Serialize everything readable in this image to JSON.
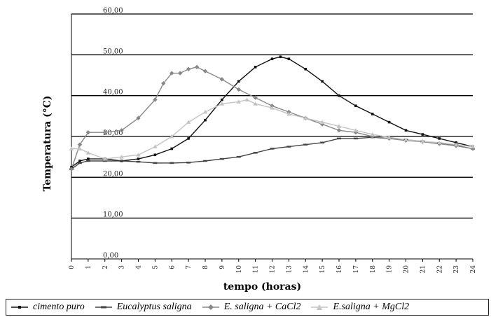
{
  "chart_data": {
    "type": "line",
    "xlabel": "tempo (horas)",
    "ylabel": "Temperatura (°C)",
    "xlim": [
      0,
      24
    ],
    "ylim": [
      0,
      60
    ],
    "yticks": [
      "0,00",
      "10,00",
      "20,00",
      "30,00",
      "40,00",
      "50,00",
      "60,00"
    ],
    "xticks": [
      "0",
      "1",
      "2",
      "3",
      "4",
      "5",
      "6",
      "7",
      "8",
      "9",
      "10",
      "11",
      "12",
      "13",
      "14",
      "15",
      "16",
      "17",
      "18",
      "19",
      "20",
      "21",
      "22",
      "23",
      "24"
    ],
    "grid": "horizontal",
    "legend_position": "bottom",
    "series": [
      {
        "name": "cimento puro",
        "color": "#111111",
        "marker": "square",
        "points": [
          [
            0,
            22.5
          ],
          [
            0.5,
            24
          ],
          [
            1,
            24.5
          ],
          [
            2,
            24.5
          ],
          [
            3,
            24
          ],
          [
            4,
            24.5
          ],
          [
            5,
            25.5
          ],
          [
            6,
            27
          ],
          [
            7,
            29.5
          ],
          [
            8,
            34
          ],
          [
            9,
            39
          ],
          [
            10,
            43.5
          ],
          [
            11,
            47
          ],
          [
            12,
            49
          ],
          [
            12.5,
            49.5
          ],
          [
            13,
            49
          ],
          [
            14,
            46.5
          ],
          [
            15,
            43.5
          ],
          [
            16,
            40
          ],
          [
            17,
            37.5
          ],
          [
            18,
            35.5
          ],
          [
            19,
            33.5
          ],
          [
            20,
            31.5
          ],
          [
            21,
            30.5
          ],
          [
            22,
            29.5
          ],
          [
            23,
            28.5
          ],
          [
            24,
            27.5
          ]
        ]
      },
      {
        "name": "Eucalyptus saligna",
        "color": "#444444",
        "marker": "dash",
        "points": [
          [
            0,
            22
          ],
          [
            0.5,
            23.5
          ],
          [
            1,
            24
          ],
          [
            2,
            24
          ],
          [
            3,
            24
          ],
          [
            4,
            23.8
          ],
          [
            5,
            23.5
          ],
          [
            6,
            23.5
          ],
          [
            7,
            23.6
          ],
          [
            8,
            24
          ],
          [
            9,
            24.5
          ],
          [
            10,
            25
          ],
          [
            11,
            26
          ],
          [
            12,
            27
          ],
          [
            13,
            27.5
          ],
          [
            14,
            28
          ],
          [
            15,
            28.5
          ],
          [
            16,
            29.5
          ],
          [
            17,
            29.5
          ],
          [
            18,
            29.8
          ],
          [
            19,
            29.5
          ],
          [
            20,
            29.2
          ],
          [
            21,
            28.8
          ],
          [
            22,
            28.3
          ],
          [
            23,
            27.8
          ],
          [
            24,
            27
          ]
        ]
      },
      {
        "name": "E. saligna + CaCl2",
        "color": "#888888",
        "marker": "diamond",
        "points": [
          [
            0,
            22
          ],
          [
            0.5,
            28
          ],
          [
            1,
            31
          ],
          [
            2,
            31
          ],
          [
            3,
            31.5
          ],
          [
            4,
            34.5
          ],
          [
            5,
            39
          ],
          [
            5.5,
            43
          ],
          [
            6,
            45.5
          ],
          [
            6.5,
            45.5
          ],
          [
            7,
            46.5
          ],
          [
            7.5,
            47
          ],
          [
            8,
            46
          ],
          [
            9,
            44
          ],
          [
            10,
            41.5
          ],
          [
            11,
            39.5
          ],
          [
            12,
            37.5
          ],
          [
            13,
            36
          ],
          [
            14,
            34.5
          ],
          [
            15,
            33
          ],
          [
            16,
            31.5
          ],
          [
            17,
            31
          ],
          [
            18,
            30
          ],
          [
            19,
            29.5
          ],
          [
            20,
            29
          ],
          [
            21,
            28.7
          ],
          [
            22,
            28.2
          ],
          [
            23,
            27.7
          ],
          [
            24,
            27
          ]
        ]
      },
      {
        "name": "E.saligna + MgCl2",
        "color": "#c4c4c4",
        "marker": "triangle",
        "points": [
          [
            0,
            27
          ],
          [
            0.5,
            27
          ],
          [
            1,
            26
          ],
          [
            2,
            24.5
          ],
          [
            3,
            25
          ],
          [
            4,
            25.5
          ],
          [
            5,
            27.5
          ],
          [
            6,
            30
          ],
          [
            7,
            33.5
          ],
          [
            8,
            36
          ],
          [
            9,
            38
          ],
          [
            10,
            38.5
          ],
          [
            10.5,
            39
          ],
          [
            11,
            38
          ],
          [
            12,
            37
          ],
          [
            13,
            35.5
          ],
          [
            14,
            34.5
          ],
          [
            15,
            33.5
          ],
          [
            16,
            32.5
          ],
          [
            17,
            31.5
          ],
          [
            18,
            30.5
          ],
          [
            19,
            29.8
          ],
          [
            20,
            29.2
          ],
          [
            21,
            28.8
          ],
          [
            22,
            28.5
          ],
          [
            23,
            28
          ],
          [
            24,
            27.5
          ]
        ]
      }
    ]
  }
}
